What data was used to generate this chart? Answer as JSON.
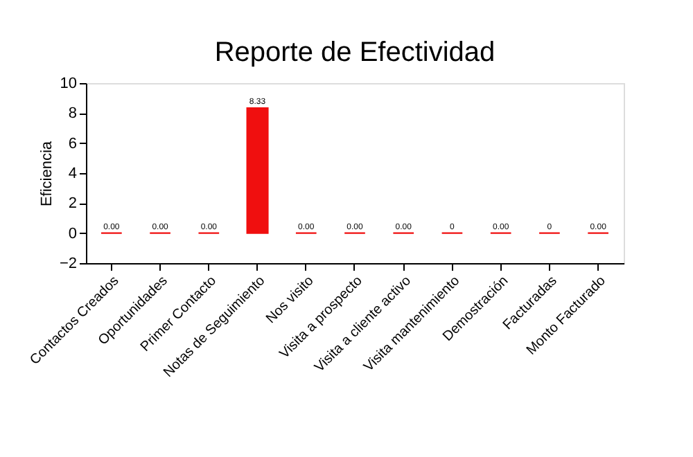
{
  "chart_data": {
    "type": "bar",
    "title": "Reporte de Efectividad",
    "ylabel": "Eficiencia",
    "categories": [
      "Contactos Creados",
      "Oportunidades",
      "Primer Contacto",
      "Notas de Seguimiento",
      "Nos visito",
      "Visita a prospecto",
      "Visita a cliente activo",
      "Visita mantenimiento",
      "Demostración",
      "Facturadas",
      "Monto Facturado"
    ],
    "values": [
      0,
      0,
      0,
      8.33,
      0,
      0,
      0,
      0,
      0,
      0,
      0
    ],
    "value_labels": [
      "0.00",
      "0.00",
      "0.00",
      "8.33",
      "0.00",
      "0.00",
      "0.00",
      "0",
      "0.00",
      "0",
      "0.00"
    ],
    "color": "#f00f0f",
    "ylim": [
      -2,
      10
    ],
    "yticks": [
      -2,
      0,
      2,
      4,
      6,
      8,
      10
    ],
    "grid": false
  }
}
